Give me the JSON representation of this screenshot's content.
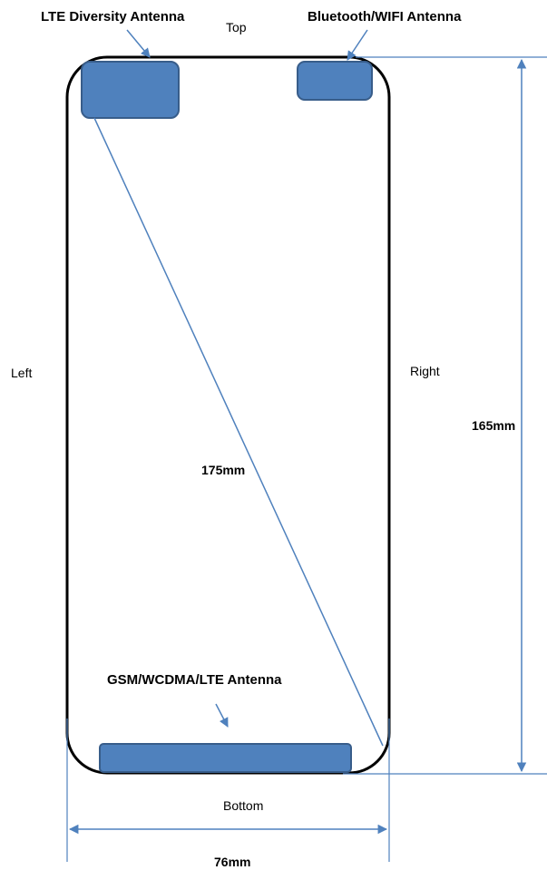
{
  "labels": {
    "top": "Top",
    "bottom": "Bottom",
    "left": "Left",
    "right": "Right"
  },
  "antennas": {
    "lte_diversity": "LTE Diversity Antenna",
    "bluetooth_wifi": "Bluetooth/WIFI Antenna",
    "gsm_wcdma_lte": "GSM/WCDMA/LTE Antenna"
  },
  "dimensions": {
    "diagonal": "175mm",
    "height": "165mm",
    "width": "76mm"
  },
  "colors": {
    "antenna_fill": "#4f81bd",
    "antenna_stroke": "#385d8a",
    "dimension_line": "#4f81bd",
    "phone_outline": "#000000"
  }
}
